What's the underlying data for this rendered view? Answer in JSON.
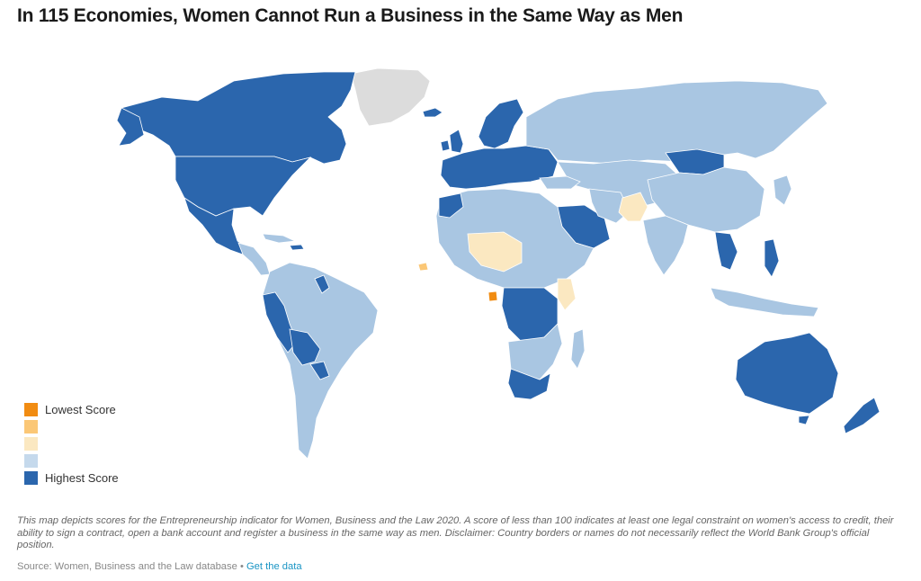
{
  "title": "In 115 Economies, Women Cannot Run a Business in the Same Way as Men",
  "legend": {
    "items": [
      {
        "label": "Lowest Score",
        "color": "#f18c12"
      },
      {
        "label": "",
        "color": "#fbc776"
      },
      {
        "label": "",
        "color": "#fbe8c1"
      },
      {
        "label": "",
        "color": "#c5d9ec"
      },
      {
        "label": "Highest Score",
        "color": "#2b66ad"
      }
    ]
  },
  "colors": {
    "highest": "#2b66ad",
    "mid_high": "#a9c6e2",
    "mid": "#fbe8c1",
    "low": "#fbc776",
    "lowest": "#f18c12",
    "no_data": "#dcdcdc"
  },
  "note": "This map depicts scores for the Entrepreneurship indicator for Women, Business and the Law 2020. A score of less than 100 indicates at least one legal constraint on women's access to credit, their ability to sign a contract, open a bank account and register a business in the same way as men. Disclaimer: Country borders or names do not necessarily reflect the World Bank Group's official position.",
  "source": {
    "text": "Source: Women, Business and the Law database",
    "separator": "•",
    "link": "Get the data"
  }
}
